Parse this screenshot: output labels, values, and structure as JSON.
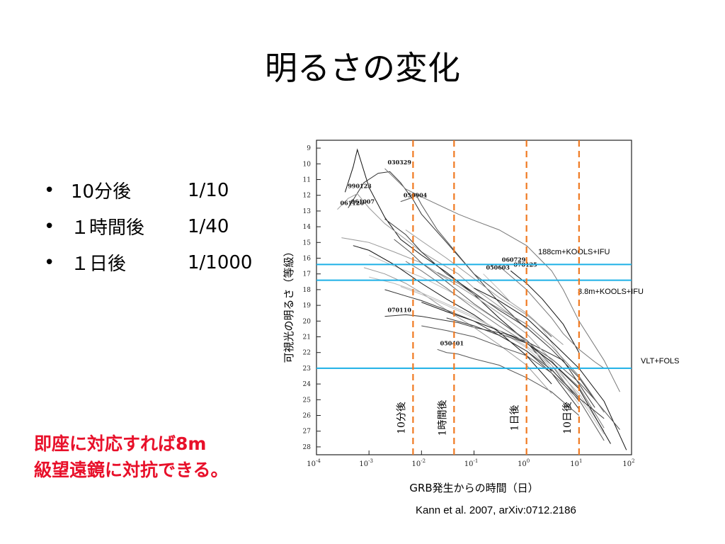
{
  "slide": {
    "title": "明るさの変化",
    "bullets": [
      {
        "label": "10分後",
        "value": "1/10"
      },
      {
        "label": "１時間後",
        "value": "1/40"
      },
      {
        "label": "１日後",
        "value": "1/1000"
      }
    ],
    "note_lines": [
      "即座に対応すれば8m",
      "級望遠鏡に対抗できる。"
    ],
    "citation": "Kann et al. 2007, arXiv:0712.2186",
    "bullet_glyph": "•"
  },
  "chart_data": {
    "type": "line",
    "title": "",
    "xlabel": "GRB発生からの時間（日）",
    "ylabel": "可視光の明るさ（等級）",
    "xscale": "log",
    "xlim": [
      0.0001,
      100
    ],
    "ylim": [
      28.5,
      8.5
    ],
    "x_ticks": [
      "10-4",
      "10-3",
      "10-2",
      "10-1",
      "100",
      "101",
      "102"
    ],
    "y_ticks": [
      9,
      10,
      11,
      12,
      13,
      14,
      15,
      16,
      17,
      18,
      19,
      20,
      21,
      22,
      23,
      24,
      25,
      26,
      27,
      28
    ],
    "vertical_markers": [
      {
        "x": 0.0069,
        "label": "10分後"
      },
      {
        "x": 0.0417,
        "label": "1時間後"
      },
      {
        "x": 1,
        "label": "1日後"
      },
      {
        "x": 10,
        "label": "10日後"
      }
    ],
    "horizontal_limits": [
      {
        "y": 16.4,
        "label": "188cm+KOOLS+IFU"
      },
      {
        "y": 17.4,
        "label": "3.8m+KOOLS+IFU"
      },
      {
        "y": 23.0,
        "label": "VLT+FOLS"
      }
    ],
    "series": [
      {
        "name": "990123",
        "x": [
          0.00035,
          0.0005,
          0.0006,
          0.001,
          0.002,
          0.004,
          0.01,
          0.03,
          0.1,
          0.3,
          1,
          3
        ],
        "y": [
          11.8,
          10.2,
          9.1,
          11.5,
          13.4,
          14.8,
          15.8,
          16.9,
          18.3,
          19.8,
          21.3,
          23.2
        ]
      },
      {
        "name": "061007",
        "x": [
          0.0004,
          0.0008,
          0.0015,
          0.0025,
          0.004,
          0.007,
          0.01,
          0.03,
          0.1,
          0.3,
          1
        ],
        "y": [
          12.8,
          11.2,
          10.6,
          10.5,
          11.2,
          12.3,
          13.2,
          15.0,
          17.0,
          18.8,
          20.5
        ]
      },
      {
        "name": "050904",
        "x": [
          0.004,
          0.006,
          0.008,
          0.01,
          0.02,
          0.05,
          0.1,
          0.5,
          1,
          3
        ],
        "y": [
          12.4,
          12.2,
          12.0,
          12.6,
          14.2,
          15.8,
          17.0,
          18.8,
          19.5,
          21.0
        ]
      },
      {
        "name": "030329",
        "x": [
          0.002,
          0.005,
          0.01,
          0.05,
          0.1,
          0.3,
          1,
          3,
          5,
          10,
          30,
          60
        ],
        "y": [
          10.3,
          11.6,
          12.1,
          13.2,
          13.6,
          14.2,
          15.2,
          16.8,
          18.0,
          20.0,
          22.5,
          24.5
        ]
      },
      {
        "name": "061126",
        "x": [
          0.00025,
          0.0004,
          0.0006,
          0.001,
          0.002,
          0.005,
          0.01,
          0.05,
          0.1,
          0.5,
          1
        ],
        "y": [
          12.9,
          12.2,
          11.9,
          12.8,
          13.8,
          14.8,
          15.6,
          17.0,
          17.9,
          19.6,
          20.5
        ]
      },
      {
        "name": "050603",
        "x": [
          0.15,
          0.3,
          0.5,
          1,
          2,
          5
        ],
        "y": [
          17.0,
          18.0,
          18.8,
          19.5,
          20.5,
          22.5
        ]
      },
      {
        "name": "070125",
        "x": [
          0.5,
          0.7,
          1,
          2,
          5,
          10
        ],
        "y": [
          16.8,
          17.2,
          17.6,
          18.6,
          20.2,
          22.0
        ]
      },
      {
        "name": "070110",
        "x": [
          0.002,
          0.005,
          0.01,
          0.05,
          0.1,
          0.5,
          1,
          5,
          20
        ],
        "y": [
          19.7,
          19.6,
          19.7,
          20.1,
          20.4,
          20.9,
          21.3,
          22.5,
          25.5
        ]
      },
      {
        "name": "050401",
        "x": [
          0.02,
          0.03,
          0.05,
          0.1,
          0.3,
          1,
          3,
          10
        ],
        "y": [
          21.8,
          22.0,
          22.1,
          22.4,
          22.8,
          23.6,
          24.5,
          26.0
        ]
      },
      {
        "name": "060729",
        "x": [
          0.3,
          1,
          3,
          5,
          10,
          20,
          30
        ],
        "y": [
          16.5,
          18.0,
          19.8,
          20.8,
          21.8,
          22.6,
          23.0
        ]
      },
      {
        "name": "",
        "x": [
          0.0003,
          0.001,
          0.003,
          0.01,
          0.03,
          0.1,
          0.3,
          1,
          3,
          10
        ],
        "y": [
          14.7,
          15.0,
          15.6,
          16.3,
          17.3,
          18.4,
          19.5,
          20.8,
          22.5,
          24.8
        ]
      },
      {
        "name": "",
        "x": [
          0.001,
          0.003,
          0.01,
          0.03,
          0.1,
          0.3,
          1,
          3,
          10
        ],
        "y": [
          15.8,
          16.5,
          17.2,
          18.0,
          19.0,
          20.0,
          21.3,
          23.0,
          25.3
        ]
      },
      {
        "name": "",
        "x": [
          0.0005,
          0.001,
          0.003,
          0.01,
          0.03,
          0.1,
          0.3,
          1,
          3
        ],
        "y": [
          15.2,
          15.5,
          16.4,
          17.6,
          18.6,
          19.6,
          20.7,
          22.2,
          24.0
        ]
      },
      {
        "name": "",
        "x": [
          0.002,
          0.005,
          0.01,
          0.03,
          0.1,
          0.3,
          1,
          3,
          10,
          20
        ],
        "y": [
          13.5,
          14.5,
          15.6,
          17.0,
          18.2,
          19.3,
          20.4,
          21.8,
          23.6,
          25.0
        ]
      },
      {
        "name": "",
        "x": [
          0.003,
          0.006,
          0.01,
          0.03,
          0.1,
          0.3,
          1,
          3,
          10
        ],
        "y": [
          14.8,
          15.6,
          16.3,
          17.5,
          18.9,
          20.0,
          21.2,
          22.8,
          25.1
        ]
      },
      {
        "name": "",
        "x": [
          0.005,
          0.01,
          0.03,
          0.1,
          0.3,
          1,
          3,
          10,
          30
        ],
        "y": [
          16.2,
          16.8,
          17.9,
          19.2,
          20.3,
          21.4,
          22.6,
          24.2,
          26.8
        ]
      },
      {
        "name": "",
        "x": [
          0.0008,
          0.002,
          0.005,
          0.01,
          0.03,
          0.1,
          0.3,
          1,
          3
        ],
        "y": [
          16.6,
          17.0,
          17.6,
          18.2,
          19.3,
          20.4,
          21.5,
          22.8,
          24.6
        ]
      },
      {
        "name": "",
        "x": [
          0.004,
          0.01,
          0.03,
          0.1,
          0.3,
          1,
          3,
          10,
          30
        ],
        "y": [
          17.8,
          18.3,
          19.0,
          19.8,
          20.6,
          21.6,
          22.8,
          24.6,
          27.0
        ]
      },
      {
        "name": "",
        "x": [
          0.01,
          0.03,
          0.1,
          0.3,
          1,
          3,
          10,
          40
        ],
        "y": [
          18.8,
          19.4,
          20.0,
          20.6,
          21.4,
          22.6,
          24.3,
          27.8
        ]
      },
      {
        "name": "",
        "x": [
          0.002,
          0.005,
          0.01,
          0.03,
          0.1,
          0.3,
          1,
          3,
          10
        ],
        "y": [
          18.0,
          18.4,
          18.7,
          19.3,
          20.0,
          20.9,
          21.9,
          23.3,
          25.6
        ]
      },
      {
        "name": "",
        "x": [
          0.01,
          0.03,
          0.1,
          0.3,
          1,
          3,
          10,
          30
        ],
        "y": [
          20.3,
          20.6,
          21.0,
          21.6,
          22.2,
          23.3,
          25.0,
          27.6
        ]
      },
      {
        "name": "",
        "x": [
          0.02,
          0.05,
          0.1,
          0.3,
          1,
          3,
          10,
          30
        ],
        "y": [
          16.9,
          17.6,
          18.3,
          19.2,
          20.2,
          21.6,
          23.5,
          25.8
        ]
      },
      {
        "name": "",
        "x": [
          0.005,
          0.01,
          0.03,
          0.1,
          0.3,
          1,
          2,
          5
        ],
        "y": [
          14.2,
          14.9,
          16.0,
          17.3,
          18.5,
          19.6,
          20.4,
          21.5
        ]
      },
      {
        "name": "",
        "x": [
          0.001,
          0.003,
          0.01,
          0.03,
          0.1,
          0.3,
          1,
          3,
          10,
          30
        ],
        "y": [
          17.2,
          17.6,
          18.2,
          18.9,
          19.7,
          20.6,
          21.7,
          23.1,
          24.8,
          27.2
        ]
      },
      {
        "name": "",
        "x": [
          0.1,
          0.3,
          1,
          3,
          10,
          30,
          80
        ],
        "y": [
          17.9,
          18.7,
          19.8,
          21.3,
          23.0,
          25.1,
          28.2
        ]
      },
      {
        "name": "",
        "x": [
          0.03,
          0.1,
          0.3,
          1,
          3,
          10,
          30
        ],
        "y": [
          19.8,
          20.3,
          20.9,
          21.9,
          23.1,
          24.9,
          26.2
        ]
      },
      {
        "name": "",
        "x": [
          0.3,
          1,
          3,
          10,
          20,
          60
        ],
        "y": [
          20.8,
          21.4,
          22.4,
          23.9,
          25.0,
          26.9
        ]
      }
    ]
  }
}
